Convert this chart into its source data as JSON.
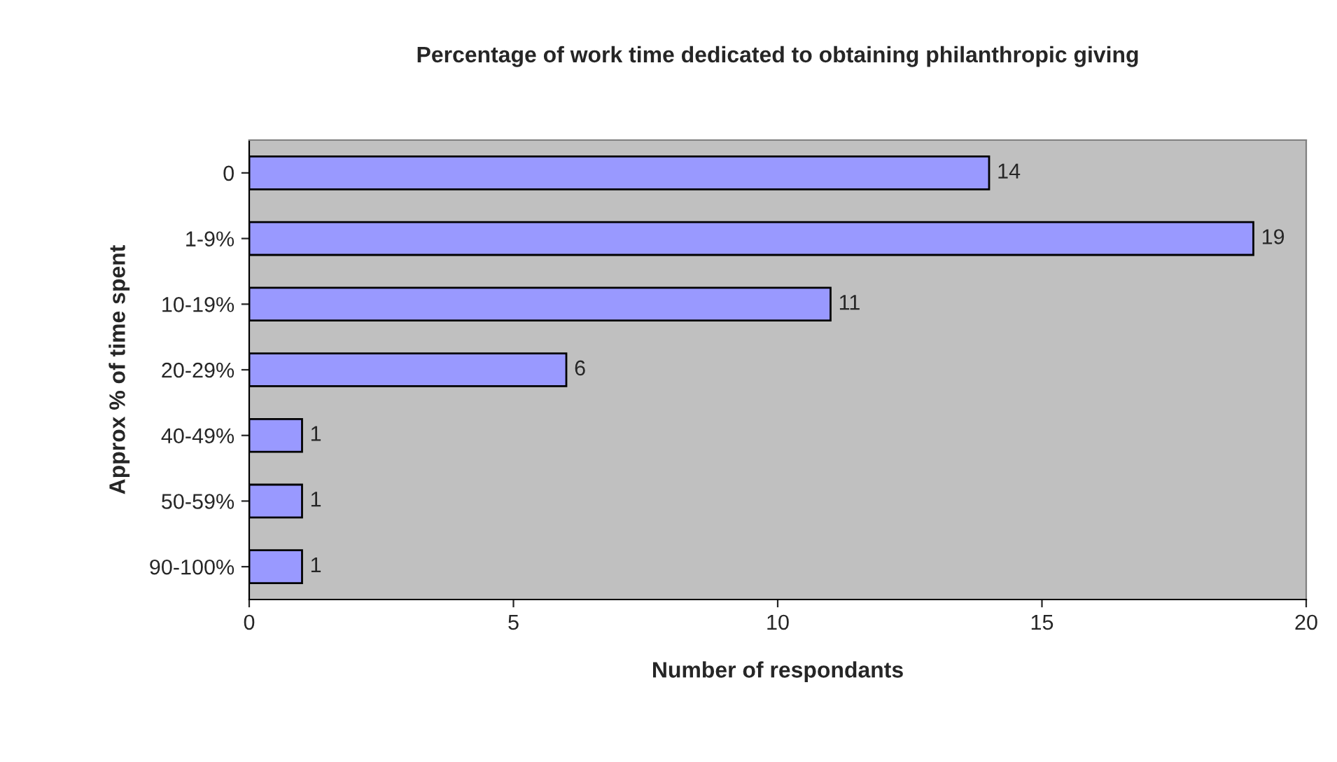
{
  "chart_data": {
    "type": "bar",
    "orientation": "horizontal",
    "title": "Percentage of work time dedicated to obtaining philanthropic giving",
    "xlabel": "Number of respondants",
    "ylabel": "Approx % of time spent",
    "categories": [
      "0",
      "1-9%",
      "10-19%",
      "20-29%",
      "40-49%",
      "50-59%",
      "90-100%"
    ],
    "values": [
      14,
      19,
      11,
      6,
      1,
      1,
      1
    ],
    "color": "#9999ff",
    "xlim": [
      0,
      20
    ],
    "xticks": [
      0,
      5,
      10,
      15,
      20
    ],
    "grid": false,
    "data_labels": true
  }
}
